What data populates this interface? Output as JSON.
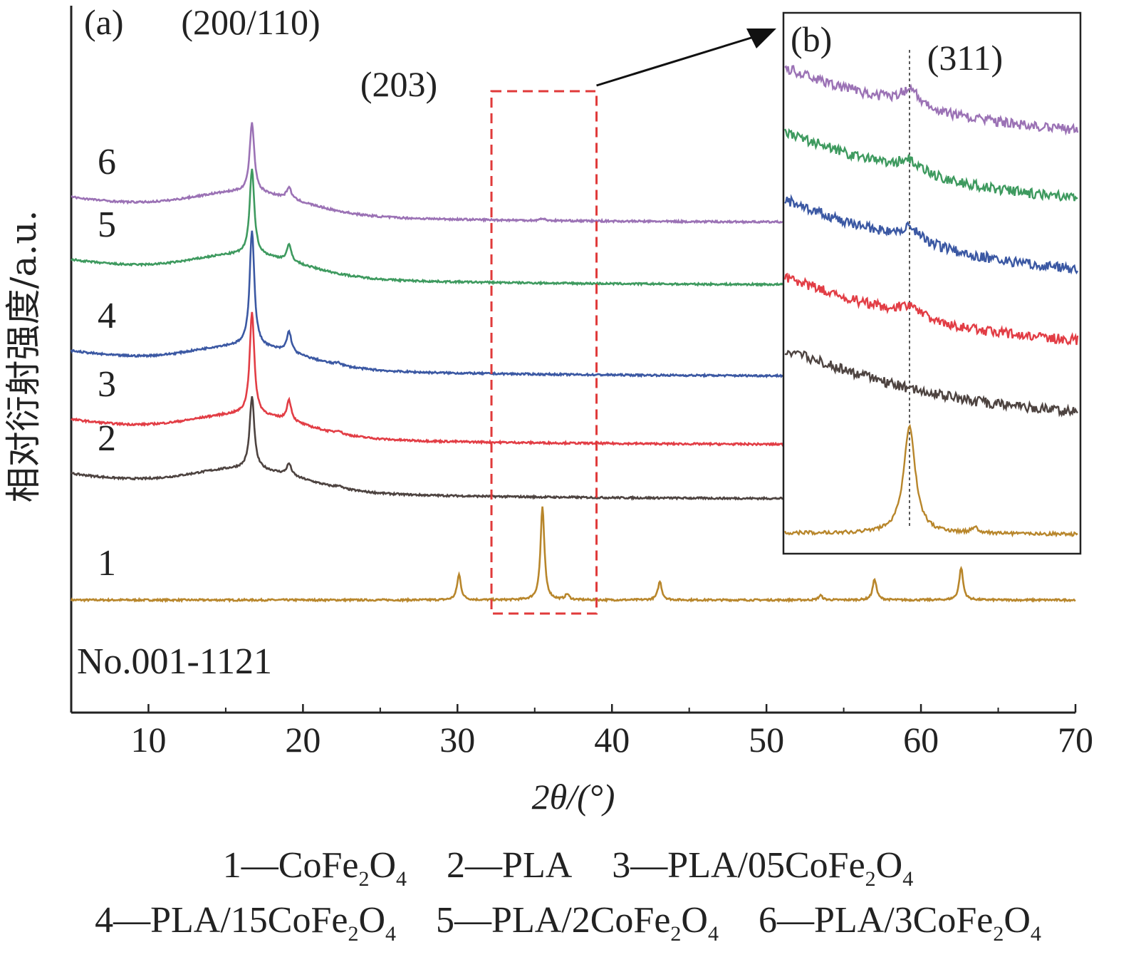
{
  "chart_data": [
    {
      "panel_label": "(a)",
      "type": "line",
      "xlabel": "2θ/(°)",
      "ylabel": "相对衍射强度/a.u.",
      "xlim": [
        5,
        70
      ],
      "xticks": [
        10,
        20,
        30,
        40,
        50,
        60,
        70
      ],
      "grid": false,
      "y_ticks_shown": false,
      "annotations": [
        "(200/110)",
        "(203)",
        "No.001-1121"
      ],
      "series": [
        {
          "name": "1",
          "color": "#b8862b",
          "baseline": 0.0,
          "peaks": [
            {
              "x": 30.1,
              "h": 0.55
            },
            {
              "x": 35.5,
              "h": 2.0
            },
            {
              "x": 37.1,
              "h": 0.12
            },
            {
              "x": 43.1,
              "h": 0.4
            },
            {
              "x": 53.5,
              "h": 0.1
            },
            {
              "x": 57.0,
              "h": 0.45
            },
            {
              "x": 62.6,
              "h": 0.7
            }
          ]
        },
        {
          "name": "2",
          "color": "#4d4340",
          "baseline": 2.38,
          "peaks": [
            {
              "x": 16.7,
              "h": 1.55
            },
            {
              "x": 19.1,
              "h": 0.25
            },
            {
              "x": 22.3,
              "h": 0.05
            }
          ]
        },
        {
          "name": "3",
          "color": "#e23d45",
          "baseline": 3.55,
          "peaks": [
            {
              "x": 16.7,
              "h": 2.2
            },
            {
              "x": 19.1,
              "h": 0.45
            },
            {
              "x": 22.3,
              "h": 0.07
            }
          ]
        },
        {
          "name": "4",
          "color": "#3b58a3",
          "baseline": 5.03,
          "peaks": [
            {
              "x": 16.7,
              "h": 2.5
            },
            {
              "x": 19.1,
              "h": 0.45
            },
            {
              "x": 22.3,
              "h": 0.06
            }
          ]
        },
        {
          "name": "5",
          "color": "#3e9a5f",
          "baseline": 7.0,
          "peaks": [
            {
              "x": 16.7,
              "h": 1.85
            },
            {
              "x": 19.1,
              "h": 0.35
            }
          ]
        },
        {
          "name": "6",
          "color": "#9b72b5",
          "baseline": 8.35,
          "peaks": [
            {
              "x": 16.7,
              "h": 1.5
            },
            {
              "x": 19.1,
              "h": 0.25
            },
            {
              "x": 35.5,
              "h": 0.05
            }
          ]
        }
      ],
      "highlight_box_x": [
        32.2,
        39.0
      ]
    },
    {
      "panel_label": "(b)",
      "type": "line",
      "annotations": [
        "(311)"
      ],
      "reference_line_label": "(311)",
      "series": [
        {
          "name": "1",
          "color": "#b8862b",
          "trend": "flat",
          "peak_height": "strong"
        },
        {
          "name": "2",
          "color": "#4d4340",
          "trend": "decreasing",
          "peak_height": "none"
        },
        {
          "name": "3",
          "color": "#e23d45",
          "trend": "decreasing",
          "peak_height": "weak"
        },
        {
          "name": "4",
          "color": "#3b58a3",
          "trend": "decreasing",
          "peak_height": "weak"
        },
        {
          "name": "5",
          "color": "#3e9a5f",
          "trend": "decreasing",
          "peak_height": "weak"
        },
        {
          "name": "6",
          "color": "#9b72b5",
          "trend": "decreasing",
          "peak_height": "weak"
        }
      ]
    }
  ],
  "legend": {
    "row1": [
      {
        "num": "1—",
        "main": "CoFe",
        "sub1": "2",
        "mid": "O",
        "sub2": "4"
      },
      {
        "num": "2—",
        "main": "PLA",
        "sub1": "",
        "mid": "",
        "sub2": ""
      },
      {
        "num": "3—",
        "main": "PLA/05CoFe",
        "sub1": "2",
        "mid": "O",
        "sub2": "4"
      }
    ],
    "row2": [
      {
        "num": "4—",
        "main": "PLA/15CoFe",
        "sub1": "2",
        "mid": "O",
        "sub2": "4"
      },
      {
        "num": "5—",
        "main": "PLA/2CoFe",
        "sub1": "2",
        "mid": "O",
        "sub2": "4"
      },
      {
        "num": "6—",
        "main": "PLA/3CoFe",
        "sub1": "2",
        "mid": "O",
        "sub2": "4"
      }
    ]
  },
  "colors": {
    "axis": "#222222",
    "highlight_box": "#e03a3a",
    "arrow": "#111111"
  }
}
